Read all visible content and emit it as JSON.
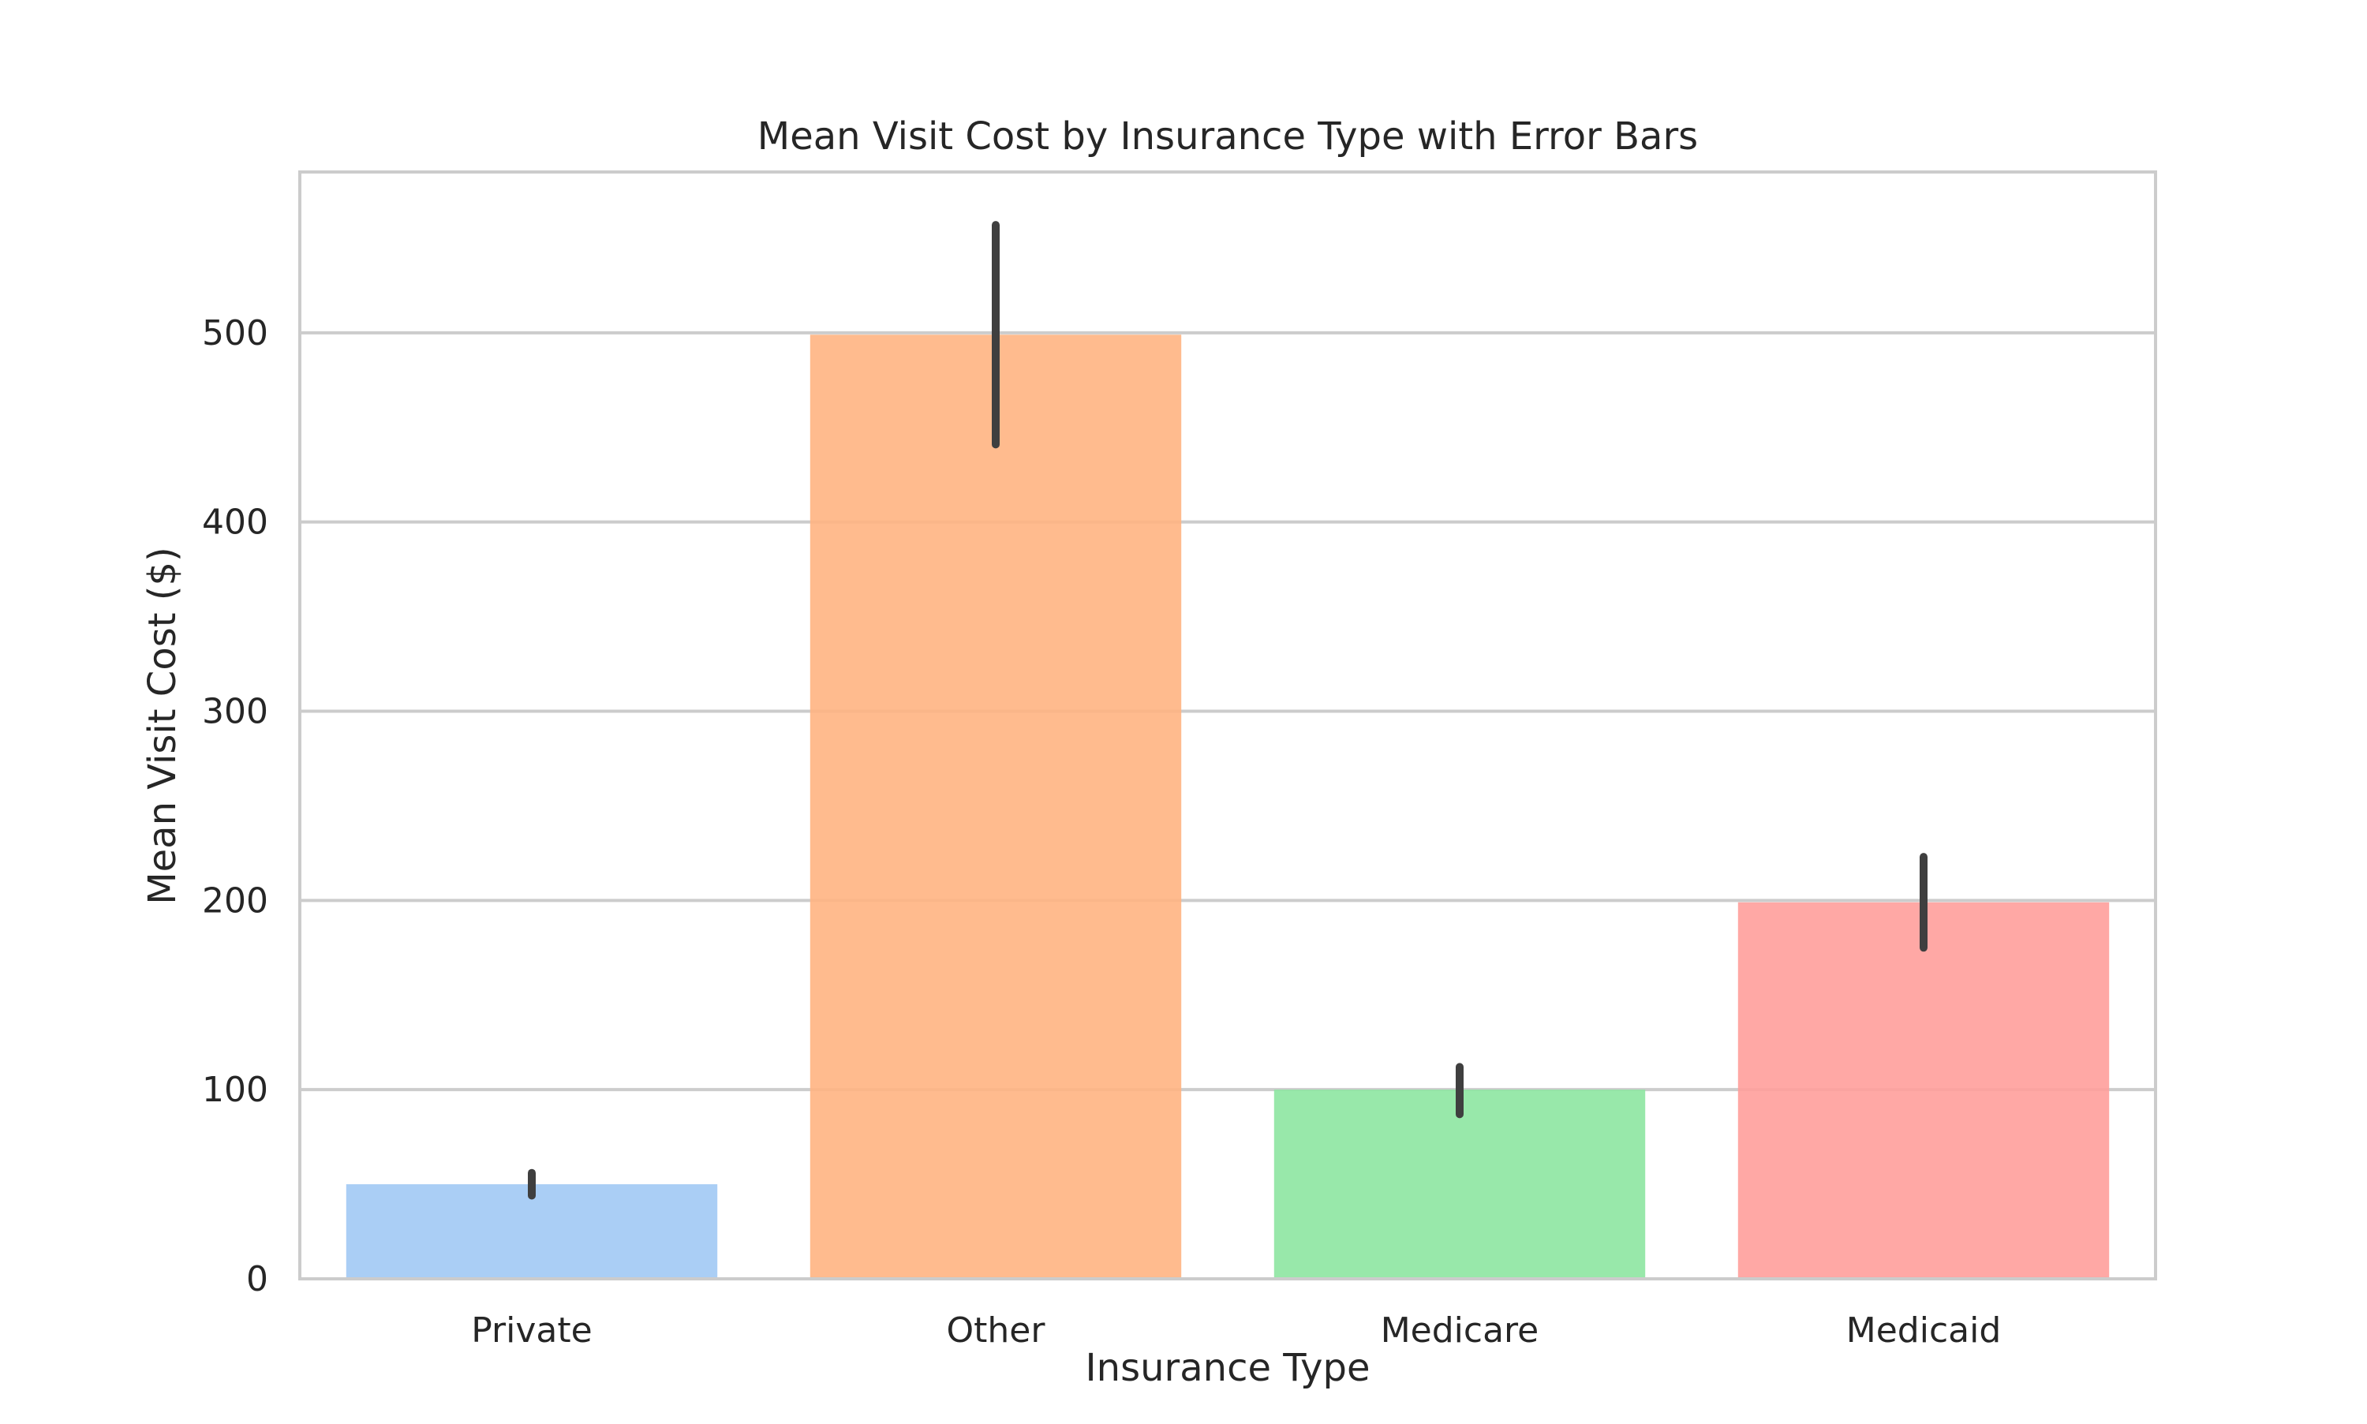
{
  "chart_data": {
    "type": "bar",
    "title": "Mean Visit Cost by Insurance Type with Error Bars",
    "xlabel": "Insurance Type",
    "ylabel": "Mean Visit Cost ($)",
    "categories": [
      "Private",
      "Other",
      "Medicare",
      "Medicaid"
    ],
    "values": [
      50,
      499,
      100,
      199
    ],
    "error_bars": [
      {
        "low": 44,
        "high": 56
      },
      {
        "low": 441,
        "high": 557
      },
      {
        "low": 87,
        "high": 112
      },
      {
        "low": 175,
        "high": 223
      }
    ],
    "colors": [
      "#a1c9f4",
      "#ffb482",
      "#8de5a1",
      "#ff9f9b"
    ],
    "bar_alpha": 0.9,
    "error_bar_color": "#3f3f3f",
    "grid_color": "#cccccc",
    "spine_color": "#cccccc",
    "ylim": [
      0,
      585
    ],
    "yticks": [
      0,
      100,
      200,
      300,
      400,
      500
    ],
    "grid": true,
    "legend": false
  }
}
